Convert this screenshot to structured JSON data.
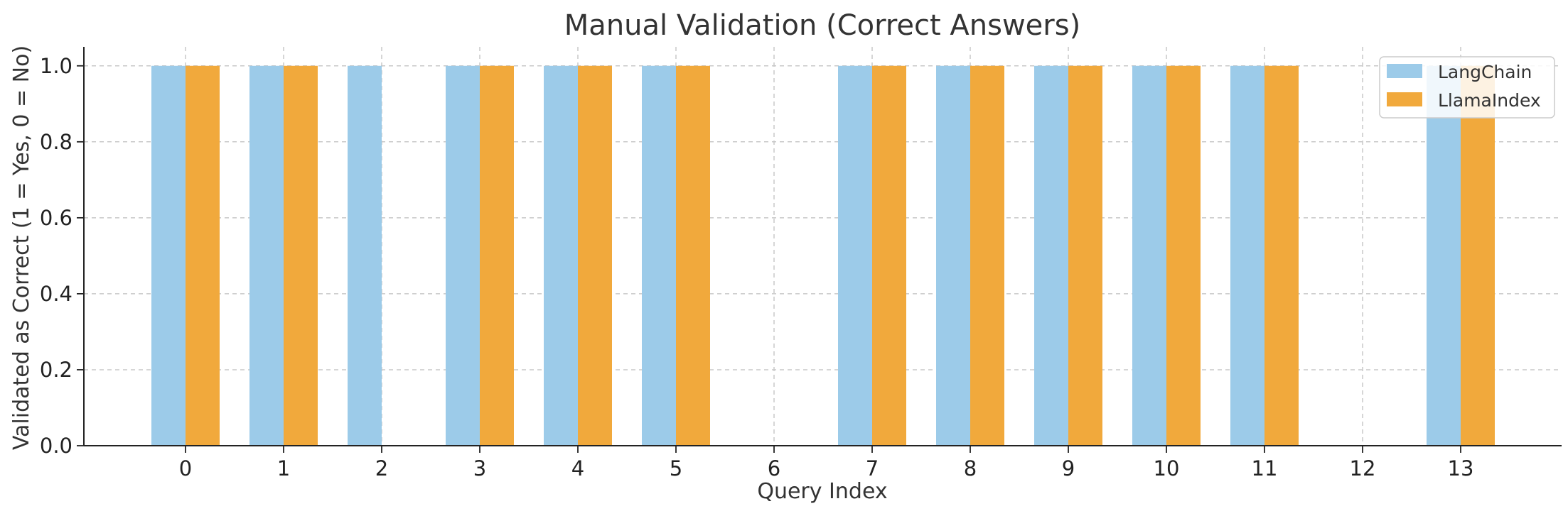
{
  "chart_data": {
    "type": "bar",
    "title": "Manual Validation (Correct Answers)",
    "xlabel": "Query Index",
    "ylabel": "Validated as Correct (1 = Yes, 0 = No)",
    "categories": [
      "0",
      "1",
      "2",
      "3",
      "4",
      "5",
      "6",
      "7",
      "8",
      "9",
      "10",
      "11",
      "12",
      "13"
    ],
    "series": [
      {
        "name": "LangChain",
        "color": "#9ccbe9",
        "values": [
          1,
          1,
          1,
          1,
          1,
          1,
          0,
          1,
          1,
          1,
          1,
          1,
          0,
          1
        ]
      },
      {
        "name": "LlamaIndex",
        "color": "#f1a93c",
        "values": [
          1,
          1,
          0,
          1,
          1,
          1,
          0,
          1,
          1,
          1,
          1,
          1,
          0,
          1
        ]
      }
    ],
    "ylim": [
      0,
      1.05
    ],
    "yticks": [
      "0.0",
      "0.2",
      "0.4",
      "0.6",
      "0.8",
      "1.0"
    ],
    "grid": true,
    "legend_position": "top-right"
  }
}
